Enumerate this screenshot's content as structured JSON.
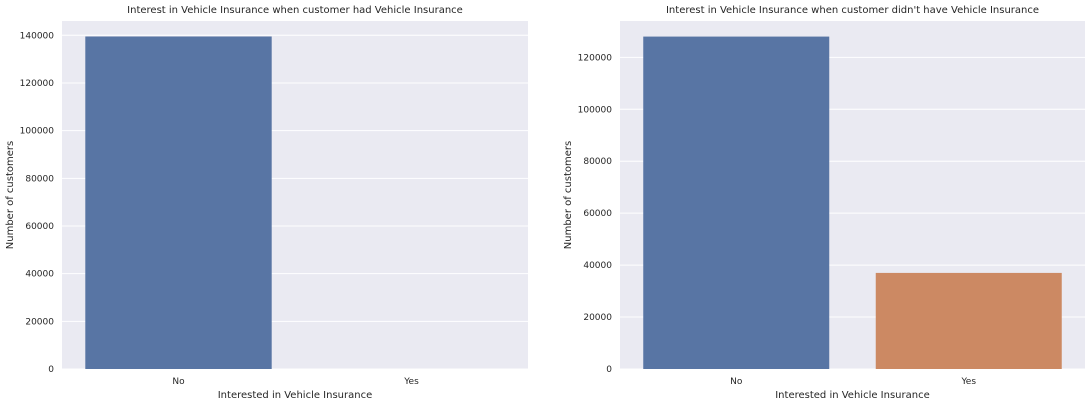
{
  "chart_data": [
    {
      "type": "bar",
      "title": "Interest in Vehicle Insurance when customer had Vehicle Insurance",
      "xlabel": "Interested in Vehicle Insurance",
      "ylabel": "Number of customers",
      "categories": [
        "No",
        "Yes"
      ],
      "values": [
        139500,
        0
      ],
      "colors": [
        "#5875a4",
        "#cc8963"
      ],
      "ylim": [
        0,
        146000
      ],
      "yticks": [
        0,
        20000,
        40000,
        60000,
        80000,
        100000,
        120000,
        140000
      ],
      "grid": true,
      "background": "#eaeaf2"
    },
    {
      "type": "bar",
      "title": "Interest in Vehicle Insurance when customer didn't have Vehicle Insurance",
      "xlabel": "Interested in Vehicle Insurance",
      "ylabel": "Number of customers",
      "categories": [
        "No",
        "Yes"
      ],
      "values": [
        128000,
        37000
      ],
      "colors": [
        "#5875a4",
        "#cc8963"
      ],
      "ylim": [
        0,
        134000
      ],
      "yticks": [
        0,
        20000,
        40000,
        60000,
        80000,
        100000,
        120000
      ],
      "grid": true,
      "background": "#eaeaf2"
    }
  ]
}
